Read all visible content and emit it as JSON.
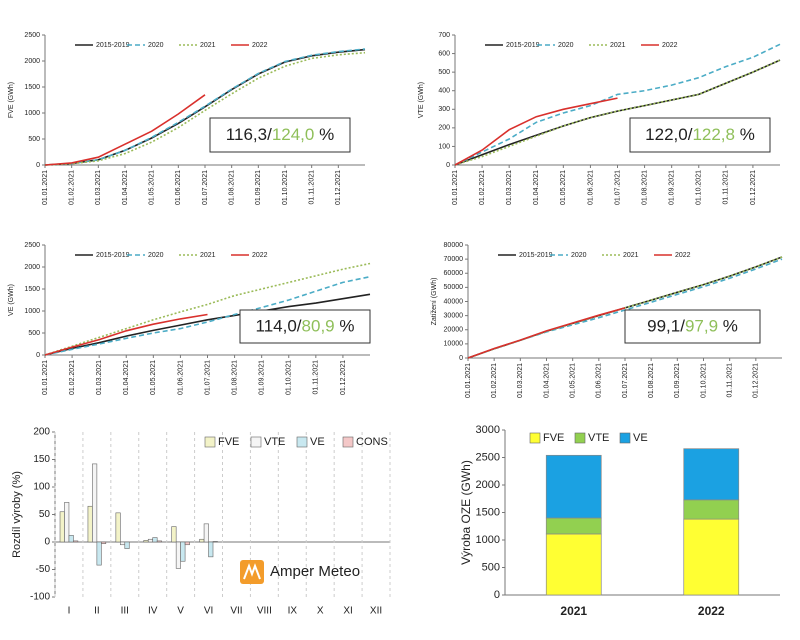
{
  "chart_data": [
    {
      "type": "line",
      "ylabel": "FVE (GWh)",
      "categories": [
        "01.01.2021",
        "01.02.2021",
        "01.03.2021",
        "01.04.2021",
        "01.05.2021",
        "01.06.2021",
        "01.07.2021",
        "01.08.2021",
        "01.09.2021",
        "01.10.2021",
        "01.11.2021",
        "01.12.2021",
        null
      ],
      "series": [
        {
          "name": "2015-2019",
          "color": "#222222",
          "dash": "solid",
          "values": [
            0,
            30,
            100,
            280,
            520,
            800,
            1120,
            1450,
            1750,
            1980,
            2100,
            2170,
            2220
          ]
        },
        {
          "name": "2020",
          "color": "#4bacc6",
          "dash": "dashed",
          "values": [
            0,
            30,
            100,
            280,
            530,
            820,
            1130,
            1460,
            1760,
            1990,
            2110,
            2180,
            2230
          ]
        },
        {
          "name": "2021",
          "color": "#9bbb59",
          "dash": "dotted",
          "values": [
            0,
            25,
            80,
            220,
            440,
            720,
            1050,
            1370,
            1670,
            1900,
            2050,
            2120,
            2160
          ]
        },
        {
          "name": "2022",
          "color": "#d9302c",
          "dash": "solid",
          "values": [
            0,
            40,
            150,
            400,
            650,
            980,
            1350,
            null,
            null,
            null,
            null,
            null,
            null
          ]
        }
      ],
      "ylim": [
        0,
        2500
      ],
      "yticks": [
        0,
        500,
        1000,
        1500,
        2000,
        2500
      ],
      "annotation": [
        "116,3/",
        "124,0",
        " %"
      ]
    },
    {
      "type": "line",
      "ylabel": "VTE (GWh)",
      "categories": [
        "01.01.2021",
        "01.02.2021",
        "01.03.2021",
        "01.04.2021",
        "01.05.2021",
        "01.06.2021",
        "01.07.2021",
        "01.08.2021",
        "01.09.2021",
        "01.10.2021",
        "01.11.2021",
        "01.12.2021",
        null
      ],
      "series": [
        {
          "name": "2015-2019",
          "color": "#222222",
          "dash": "solid",
          "values": [
            0,
            55,
            110,
            160,
            210,
            255,
            290,
            320,
            350,
            380,
            440,
            500,
            565
          ]
        },
        {
          "name": "2020",
          "color": "#4bacc6",
          "dash": "dashed",
          "values": [
            0,
            70,
            140,
            230,
            280,
            320,
            380,
            400,
            430,
            470,
            530,
            580,
            650
          ]
        },
        {
          "name": "2021",
          "color": "#9bbb59",
          "dash": "dotted",
          "values": [
            0,
            45,
            100,
            155,
            210,
            255,
            290,
            320,
            350,
            380,
            440,
            500,
            565
          ]
        },
        {
          "name": "2022",
          "color": "#d9302c",
          "dash": "solid",
          "values": [
            0,
            80,
            190,
            260,
            300,
            330,
            360,
            null,
            null,
            null,
            null,
            null,
            null
          ]
        }
      ],
      "ylim": [
        0,
        700
      ],
      "yticks": [
        0,
        100,
        200,
        300,
        400,
        500,
        600,
        700
      ],
      "annotation": [
        "122,0/",
        "122,8",
        " %"
      ]
    },
    {
      "type": "line",
      "ylabel": "VE (GWh)",
      "categories": [
        "01.01.2021",
        "01.02.2021",
        "01.03.2021",
        "01.04.2021",
        "01.05.2021",
        "01.06.2021",
        "01.07.2021",
        "01.08.2021",
        "01.09.2021",
        "01.10.2021",
        "01.11.2021",
        "01.12.2021",
        null
      ],
      "series": [
        {
          "name": "2015-2019",
          "color": "#222222",
          "dash": "solid",
          "values": [
            0,
            150,
            280,
            430,
            560,
            680,
            800,
            900,
            1000,
            1100,
            1180,
            1280,
            1380
          ]
        },
        {
          "name": "2020",
          "color": "#4bacc6",
          "dash": "dashed",
          "values": [
            0,
            130,
            250,
            380,
            500,
            600,
            750,
            920,
            1080,
            1250,
            1450,
            1650,
            1780
          ]
        },
        {
          "name": "2021",
          "color": "#9bbb59",
          "dash": "dotted",
          "values": [
            0,
            200,
            400,
            600,
            800,
            980,
            1150,
            1350,
            1500,
            1650,
            1800,
            1950,
            2080
          ]
        },
        {
          "name": "2022",
          "color": "#d9302c",
          "dash": "solid",
          "values": [
            0,
            180,
            350,
            550,
            700,
            820,
            920,
            null,
            null,
            null,
            null,
            null,
            null
          ]
        }
      ],
      "ylim": [
        0,
        2500
      ],
      "yticks": [
        0,
        500,
        1000,
        1500,
        2000,
        2500
      ],
      "annotation": [
        "114,0/",
        "80,9",
        " %"
      ]
    },
    {
      "type": "line",
      "ylabel": "Zatížení (GWh)",
      "categories": [
        "01.01.2021",
        "01.02.2021",
        "01.03.2021",
        "01.04.2021",
        "01.05.2021",
        "01.06.2021",
        "01.07.2021",
        "01.08.2021",
        "01.09.2021",
        "01.10.2021",
        "01.11.2021",
        "01.12.2021",
        null
      ],
      "series": [
        {
          "name": "2015-2019",
          "color": "#222222",
          "dash": "solid",
          "values": [
            0,
            6500,
            12500,
            19000,
            24500,
            30000,
            35500,
            41000,
            46500,
            52000,
            58000,
            64500,
            71500
          ]
        },
        {
          "name": "2020",
          "color": "#4bacc6",
          "dash": "dashed",
          "values": [
            0,
            6500,
            12500,
            18500,
            23500,
            28500,
            34000,
            39500,
            45000,
            50500,
            56500,
            63000,
            70000
          ]
        },
        {
          "name": "2021",
          "color": "#9bbb59",
          "dash": "dotted",
          "values": [
            0,
            6500,
            12500,
            19000,
            24500,
            30000,
            35500,
            41000,
            46500,
            52000,
            58000,
            64500,
            71500
          ]
        },
        {
          "name": "2022",
          "color": "#d9302c",
          "dash": "solid",
          "values": [
            0,
            6700,
            12700,
            19200,
            24800,
            30300,
            35500,
            null,
            null,
            null,
            null,
            null,
            null
          ]
        }
      ],
      "ylim": [
        0,
        80000
      ],
      "yticks": [
        0,
        10000,
        20000,
        30000,
        40000,
        50000,
        60000,
        70000,
        80000
      ],
      "annotation": [
        "99,1/",
        "97,9",
        " %"
      ]
    },
    {
      "type": "bar",
      "ylabel": "Rozdíl výroby (%)",
      "logo": "Amper Meteo",
      "categories": [
        "I",
        "II",
        "III",
        "IV",
        "V",
        "VI",
        "VII",
        "VIII",
        "IX",
        "X",
        "XI",
        "XII"
      ],
      "series": [
        {
          "name": "FVE",
          "color": "#f3f3c8",
          "values": [
            55,
            65,
            53,
            3,
            28,
            5,
            null,
            null,
            null,
            null,
            null,
            null
          ]
        },
        {
          "name": "VTE",
          "color": "#f5f5f5",
          "values": [
            72,
            142,
            -5,
            5,
            -48,
            33,
            null,
            null,
            null,
            null,
            null,
            null
          ]
        },
        {
          "name": "VE",
          "color": "#c8e8f0",
          "values": [
            12,
            -42,
            -12,
            8,
            -35,
            -27,
            null,
            null,
            null,
            null,
            null,
            null
          ]
        },
        {
          "name": "CONS",
          "color": "#f4c8c8",
          "values": [
            2,
            -3,
            0,
            2,
            -5,
            1,
            null,
            null,
            null,
            null,
            null,
            null
          ]
        }
      ],
      "ylim": [
        -100,
        200
      ],
      "yticks": [
        -100,
        -50,
        0,
        50,
        100,
        150,
        200
      ]
    },
    {
      "type": "bar",
      "stacked": true,
      "ylabel": "Výroba OZE (GWh)",
      "categories": [
        "2021",
        "2022"
      ],
      "series": [
        {
          "name": "FVE",
          "color": "#ffff33",
          "values": [
            1110,
            1380
          ]
        },
        {
          "name": "VTE",
          "color": "#92d050",
          "values": [
            290,
            350
          ]
        },
        {
          "name": "VE",
          "color": "#1ba1e2",
          "values": [
            1140,
            930
          ]
        }
      ],
      "ylim": [
        0,
        3000
      ],
      "yticks": [
        0,
        500,
        1000,
        1500,
        2000,
        2500,
        3000
      ]
    }
  ]
}
